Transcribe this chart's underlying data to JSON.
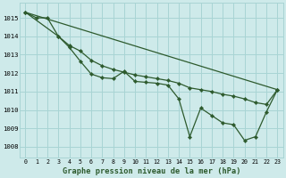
{
  "title": "Graphe pression niveau de la mer (hPa)",
  "bg_color": "#ceeaea",
  "grid_color": "#a8d4d4",
  "line_color": "#2d5a2d",
  "xlim": [
    -0.5,
    23.5
  ],
  "ylim": [
    1007.4,
    1015.8
  ],
  "yticks": [
    1008,
    1009,
    1010,
    1011,
    1012,
    1013,
    1014,
    1015
  ],
  "xticks": [
    0,
    1,
    2,
    3,
    4,
    5,
    6,
    7,
    8,
    9,
    10,
    11,
    12,
    13,
    14,
    15,
    16,
    17,
    18,
    19,
    20,
    21,
    22,
    23
  ],
  "series1_x": [
    0,
    1,
    2,
    3,
    4,
    5,
    6,
    7,
    8,
    9,
    10,
    11,
    12,
    13,
    14,
    15,
    16,
    17,
    18,
    19,
    20,
    21,
    22,
    23
  ],
  "series1_y": [
    1015.3,
    1015.0,
    1015.0,
    1014.0,
    1013.4,
    1012.65,
    1011.95,
    1011.75,
    1011.7,
    1012.1,
    1011.55,
    1011.5,
    1011.45,
    1011.35,
    1010.6,
    1008.55,
    1010.1,
    1009.7,
    1009.3,
    1009.2,
    1008.35,
    1008.55,
    1009.9,
    1011.1
  ],
  "series2_x": [
    0,
    3,
    4,
    5,
    6,
    7,
    8,
    9,
    10,
    11,
    12,
    13,
    14,
    15,
    16,
    17,
    18,
    19,
    20,
    21,
    22,
    23
  ],
  "series2_y": [
    1015.3,
    1014.0,
    1013.5,
    1013.2,
    1012.7,
    1012.4,
    1012.2,
    1012.05,
    1011.9,
    1011.8,
    1011.7,
    1011.6,
    1011.45,
    1011.2,
    1011.1,
    1011.0,
    1010.85,
    1010.75,
    1010.6,
    1010.4,
    1010.3,
    1011.1
  ],
  "series3_x": [
    0,
    23
  ],
  "series3_y": [
    1015.3,
    1011.1
  ]
}
